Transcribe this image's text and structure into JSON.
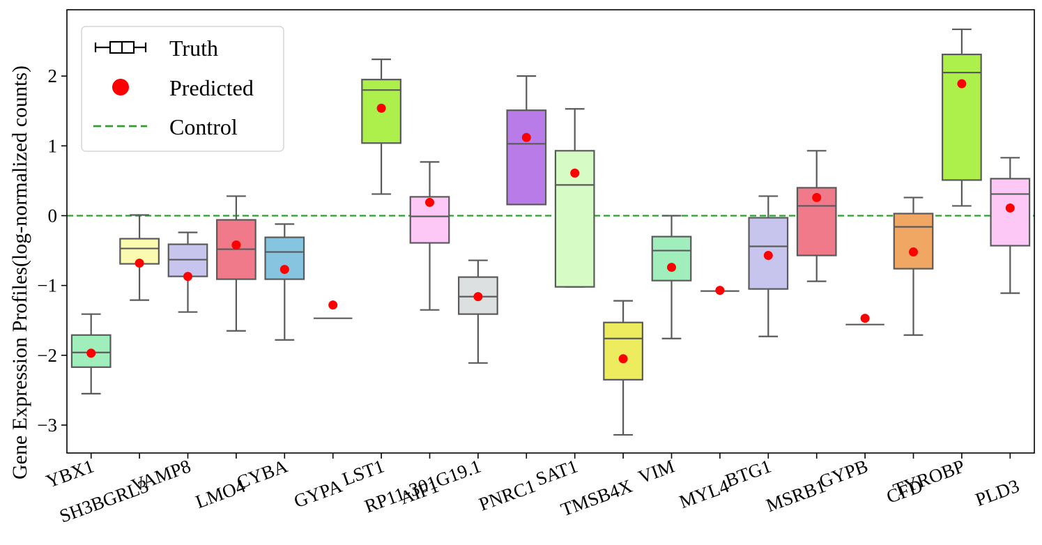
{
  "chart_data": {
    "type": "box",
    "title": "",
    "xlabel": "",
    "ylabel": "Gene Expression Profiles(log-normalized counts)",
    "ylim": [
      -3.4,
      2.95
    ],
    "yticks": [
      -3,
      -2,
      -1,
      0,
      1,
      2
    ],
    "ytick_labels": [
      "−3",
      "−2",
      "−1",
      "0",
      "1",
      "2"
    ],
    "control_level": 0,
    "legend": {
      "position": "top-left",
      "entries": [
        {
          "label": "Truth",
          "marker": "boxplot"
        },
        {
          "label": "Predicted",
          "marker": "red-dot"
        },
        {
          "label": "Control",
          "marker": "green-dashed-line"
        }
      ]
    },
    "colors": {
      "box_edge": "#5a5a5a",
      "predicted": "#ff0000",
      "control": "#2ca02c"
    },
    "genes": [
      {
        "name": "YBX1",
        "whisker_low": -2.55,
        "q1": -2.17,
        "median": -1.96,
        "q3": -1.71,
        "whisker_high": -1.41,
        "predicted": -1.97,
        "color": "#a0eebc"
      },
      {
        "name": "SH3BGRL3",
        "whisker_low": -1.21,
        "q1": -0.69,
        "median": -0.47,
        "q3": -0.33,
        "whisker_high": 0.01,
        "predicted": -0.68,
        "color": "#fafbb0"
      },
      {
        "name": "VAMP8",
        "whisker_low": -1.38,
        "q1": -0.87,
        "median": -0.63,
        "q3": -0.41,
        "whisker_high": -0.24,
        "predicted": -0.87,
        "color": "#c7c5ee"
      },
      {
        "name": "LMO4",
        "whisker_low": -1.65,
        "q1": -0.91,
        "median": -0.48,
        "q3": -0.06,
        "whisker_high": 0.28,
        "predicted": -0.42,
        "color": "#f0798a"
      },
      {
        "name": "CYBA",
        "whisker_low": -1.78,
        "q1": -0.91,
        "median": -0.52,
        "q3": -0.31,
        "whisker_high": -0.12,
        "predicted": -0.77,
        "color": "#86c4e0"
      },
      {
        "name": "GYPA",
        "whisker_low": -1.47,
        "q1": -1.47,
        "median": -1.47,
        "q3": -1.47,
        "whisker_high": -1.47,
        "predicted": -1.28,
        "color": "#ffffff"
      },
      {
        "name": "LST1",
        "whisker_low": 0.31,
        "q1": 1.04,
        "median": 1.8,
        "q3": 1.95,
        "whisker_high": 2.24,
        "predicted": 1.54,
        "color": "#aef04b"
      },
      {
        "name": "AIF1",
        "whisker_low": -1.35,
        "q1": -0.39,
        "median": -0.01,
        "q3": 0.27,
        "whisker_high": 0.77,
        "predicted": 0.19,
        "color": "#fdc8f5"
      },
      {
        "name": "RP11-301G19.1",
        "whisker_low": -2.11,
        "q1": -1.41,
        "median": -1.16,
        "q3": -0.88,
        "whisker_high": -0.64,
        "predicted": -1.16,
        "color": "#dde0e0"
      },
      {
        "name": "PNRC1",
        "whisker_low": 0.16,
        "q1": 0.16,
        "median": 1.03,
        "q3": 1.51,
        "whisker_high": 2.0,
        "predicted": 1.12,
        "color": "#b97be8"
      },
      {
        "name": "SAT1",
        "whisker_low": -1.02,
        "q1": -1.02,
        "median": 0.44,
        "q3": 0.93,
        "whisker_high": 1.53,
        "predicted": 0.61,
        "color": "#d6fbc4"
      },
      {
        "name": "TMSB4X",
        "whisker_low": -3.14,
        "q1": -2.35,
        "median": -1.76,
        "q3": -1.53,
        "whisker_high": -1.22,
        "predicted": -2.05,
        "color": "#ecec5e"
      },
      {
        "name": "VIM",
        "whisker_low": -1.76,
        "q1": -0.93,
        "median": -0.5,
        "q3": -0.3,
        "whisker_high": 0.0,
        "predicted": -0.74,
        "color": "#a0eebc"
      },
      {
        "name": "MYL4",
        "whisker_low": -1.08,
        "q1": -1.08,
        "median": -1.08,
        "q3": -1.08,
        "whisker_high": -1.08,
        "predicted": -1.07,
        "color": "#ffffff"
      },
      {
        "name": "BTG1",
        "whisker_low": -1.73,
        "q1": -1.05,
        "median": -0.44,
        "q3": -0.03,
        "whisker_high": 0.28,
        "predicted": -0.57,
        "color": "#c7c5ee"
      },
      {
        "name": "MSRB1",
        "whisker_low": -0.94,
        "q1": -0.57,
        "median": 0.14,
        "q3": 0.4,
        "whisker_high": 0.93,
        "predicted": 0.26,
        "color": "#f0798a"
      },
      {
        "name": "GYPB",
        "whisker_low": -1.56,
        "q1": -1.56,
        "median": -1.56,
        "q3": -1.56,
        "whisker_high": -1.56,
        "predicted": -1.47,
        "color": "#ffffff"
      },
      {
        "name": "CFD",
        "whisker_low": -1.71,
        "q1": -0.76,
        "median": -0.16,
        "q3": 0.03,
        "whisker_high": 0.26,
        "predicted": -0.52,
        "color": "#f0a763"
      },
      {
        "name": "TYROBP",
        "whisker_low": 0.14,
        "q1": 0.51,
        "median": 2.05,
        "q3": 2.31,
        "whisker_high": 2.67,
        "predicted": 1.89,
        "color": "#aef04b"
      },
      {
        "name": "PLD3",
        "whisker_low": -1.11,
        "q1": -0.43,
        "median": 0.31,
        "q3": 0.53,
        "whisker_high": 0.83,
        "predicted": 0.11,
        "color": "#fdc8f5"
      }
    ]
  }
}
